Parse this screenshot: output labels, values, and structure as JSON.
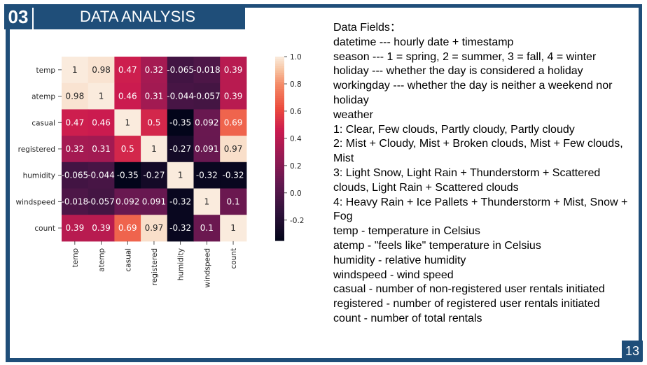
{
  "slide": {
    "section_number": "03",
    "title": "DATA ANALYSIS",
    "page_number": "13",
    "accent_color": "#1f4e79"
  },
  "fields": {
    "heading": "Data Fields：",
    "lines": [
      "datetime --- hourly date + timestamp",
      "season --- 1 = spring, 2 = summer, 3 = fall, 4 = winter",
      "holiday --- whether the day is considered a holiday",
      "workingday --- whether the day is neither a weekend nor holiday",
      "weather",
      "1: Clear, Few clouds, Partly cloudy, Partly cloudy",
      "2: Mist + Cloudy, Mist + Broken clouds, Mist + Few clouds, Mist",
      "3: Light Snow, Light Rain + Thunderstorm + Scattered clouds, Light Rain + Scattered clouds",
      "4: Heavy Rain + Ice Pallets + Thunderstorm + Mist, Snow + Fog",
      "temp - temperature in Celsius",
      "atemp - \"feels like\" temperature in Celsius",
      "humidity - relative humidity",
      "windspeed - wind speed",
      "casual - number of non-registered user rentals initiated",
      "registered - number of registered user rentals initiated",
      "count - number of total rentals"
    ]
  },
  "chart_data": {
    "type": "heatmap",
    "row_labels": [
      "temp",
      "atemp",
      "casual",
      "registered",
      "humidity",
      "windspeed",
      "count"
    ],
    "col_labels": [
      "temp",
      "atemp",
      "casual",
      "registered",
      "humidity",
      "windspeed",
      "count"
    ],
    "values": [
      [
        1,
        0.98,
        0.47,
        0.32,
        -0.065,
        -0.018,
        0.39
      ],
      [
        0.98,
        1,
        0.46,
        0.31,
        -0.044,
        -0.057,
        0.39
      ],
      [
        0.47,
        0.46,
        1,
        0.5,
        -0.35,
        0.092,
        0.69
      ],
      [
        0.32,
        0.31,
        0.5,
        1,
        -0.27,
        0.091,
        0.97
      ],
      [
        -0.065,
        -0.044,
        -0.35,
        -0.27,
        1,
        -0.32,
        -0.32
      ],
      [
        -0.018,
        -0.057,
        0.092,
        0.091,
        -0.32,
        1,
        0.1
      ],
      [
        0.39,
        0.39,
        0.69,
        0.97,
        -0.32,
        0.1,
        1
      ]
    ],
    "value_labels": [
      [
        "1",
        "0.98",
        "0.47",
        "0.32",
        "-0.065",
        "-0.018",
        "0.39"
      ],
      [
        "0.98",
        "1",
        "0.46",
        "0.31",
        "-0.044",
        "-0.057",
        "0.39"
      ],
      [
        "0.47",
        "0.46",
        "1",
        "0.5",
        "-0.35",
        "0.092",
        "0.69"
      ],
      [
        "0.32",
        "0.31",
        "0.5",
        "1",
        "-0.27",
        "0.091",
        "0.97"
      ],
      [
        "-0.065",
        "-0.044",
        "-0.35",
        "-0.27",
        "1",
        "-0.32",
        "-0.32"
      ],
      [
        "-0.018",
        "-0.057",
        "0.092",
        "0.091",
        "-0.32",
        "1",
        "0.1"
      ],
      [
        "0.39",
        "0.39",
        "0.69",
        "0.97",
        "-0.32",
        "0.1",
        "1"
      ]
    ],
    "colorbar_range": [
      -0.35,
      1.0
    ],
    "colorbar_ticks": [
      1.0,
      0.8,
      0.6,
      0.4,
      0.2,
      0.0,
      -0.2
    ],
    "colorbar_tick_labels": [
      "1.0",
      "0.8",
      "0.6",
      "0.4",
      "0.2",
      "0.0",
      "-0.2"
    ],
    "colormap": "rocket"
  }
}
